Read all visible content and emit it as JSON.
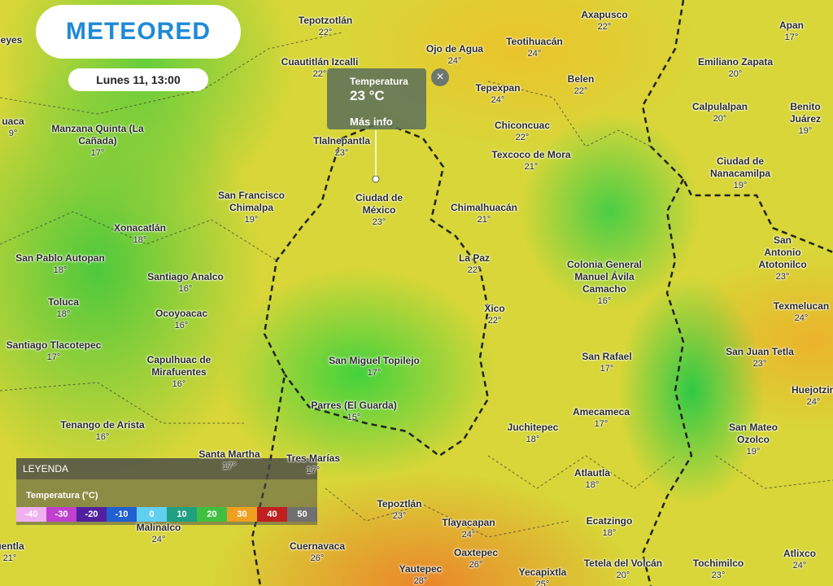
{
  "header": {
    "logo": "METEORED",
    "time": "Lunes 11, 13:00"
  },
  "popup": {
    "title": "Temperatura",
    "value": "23 °C",
    "link": "Más info"
  },
  "legend": {
    "title": "LEYENDA",
    "subtitle": "Temperatura (°C)",
    "stops": [
      -40,
      -30,
      -20,
      -10,
      0,
      10,
      20,
      30,
      40,
      50
    ]
  },
  "places": [
    {
      "name": "Tepotzotlán",
      "temp": "22°"
    },
    {
      "name": "Axapusco",
      "temp": "22°"
    },
    {
      "name": "Apan",
      "temp": "17°"
    },
    {
      "name": "eyes"
    },
    {
      "name": "Ojo de Agua",
      "temp": "24°"
    },
    {
      "name": "Teotihuacán",
      "temp": "24°"
    },
    {
      "name": "Cuautitlán Izcalli",
      "temp": "22°"
    },
    {
      "name": "Emiliano Zapata",
      "temp": "20°"
    },
    {
      "name": "Belen",
      "temp": "22°"
    },
    {
      "name": "Tepexpan",
      "temp": "24°"
    },
    {
      "name": "Calpulalpan",
      "temp": "20°"
    },
    {
      "name": "Benito Juárez",
      "temp": "19°"
    },
    {
      "name": "uaca",
      "temp": "9°"
    },
    {
      "name": "Manzana Quinta (La\nCañada)",
      "temp": "17°"
    },
    {
      "name": "Chiconcuac",
      "temp": "22°"
    },
    {
      "name": "Tlalnepantla",
      "temp": "23°"
    },
    {
      "name": "Texcoco de Mora",
      "temp": "21°"
    },
    {
      "name": "Ciudad de\nNanacamilpa",
      "temp": "19°"
    },
    {
      "name": "San Francisco\nChimalpa",
      "temp": "19°"
    },
    {
      "name": "Ciudad de\nMéxico",
      "temp": "23°"
    },
    {
      "name": "Chimalhuacán",
      "temp": "21°"
    },
    {
      "name": "Xonacatlán",
      "temp": "18°"
    },
    {
      "name": "San Antonio\nAtotonilco",
      "temp": "23°"
    },
    {
      "name": "San Pablo Autopan",
      "temp": "18°"
    },
    {
      "name": "La Paz",
      "temp": "22°"
    },
    {
      "name": "Colonia General\nManuel Ávila\nCamacho",
      "temp": "16°"
    },
    {
      "name": "Santiago Analco",
      "temp": "16°"
    },
    {
      "name": "Toluca",
      "temp": "18°"
    },
    {
      "name": "Texmelucan",
      "temp": "24°"
    },
    {
      "name": "Ocoyoacac",
      "temp": "16°"
    },
    {
      "name": "Xico",
      "temp": "22°"
    },
    {
      "name": "Santiago Tlacotepec",
      "temp": "17°"
    },
    {
      "name": "San Rafael",
      "temp": "17°"
    },
    {
      "name": "San Juan Tetla",
      "temp": "23°"
    },
    {
      "name": "Capulhuac de\nMirafuentes",
      "temp": "16°"
    },
    {
      "name": "San Miguel Topilejo",
      "temp": "17°"
    },
    {
      "name": "Huejotzin",
      "temp": "24°"
    },
    {
      "name": "Parres (El Guarda)",
      "temp": "15°"
    },
    {
      "name": "Amecameca",
      "temp": "17°"
    },
    {
      "name": "Tenango de Arista",
      "temp": "16°"
    },
    {
      "name": "Juchitepec",
      "temp": "18°"
    },
    {
      "name": "San Mateo Ozolco",
      "temp": "19°"
    },
    {
      "name": "Santa Martha",
      "temp": "17°"
    },
    {
      "name": "Tres Marías",
      "temp": "17°"
    },
    {
      "name": "Atlautla",
      "temp": "18°"
    },
    {
      "name": "Tepoztlán",
      "temp": "23°"
    },
    {
      "name": "Tlayacapan",
      "temp": "24°"
    },
    {
      "name": "Ecatzingo",
      "temp": "18°"
    },
    {
      "name": "Malinalco",
      "temp": "24°"
    },
    {
      "name": "uentla",
      "temp": "21°"
    },
    {
      "name": "Cuernavaca",
      "temp": "26°"
    },
    {
      "name": "Oaxtepec",
      "temp": "26°"
    },
    {
      "name": "Atlixco",
      "temp": "24°"
    },
    {
      "name": "Yautepec",
      "temp": "28°"
    },
    {
      "name": "Yecapixtla",
      "temp": "25°"
    },
    {
      "name": "Tetela del Volcán",
      "temp": "20°"
    },
    {
      "name": "Tochimilco",
      "temp": "23°"
    }
  ]
}
